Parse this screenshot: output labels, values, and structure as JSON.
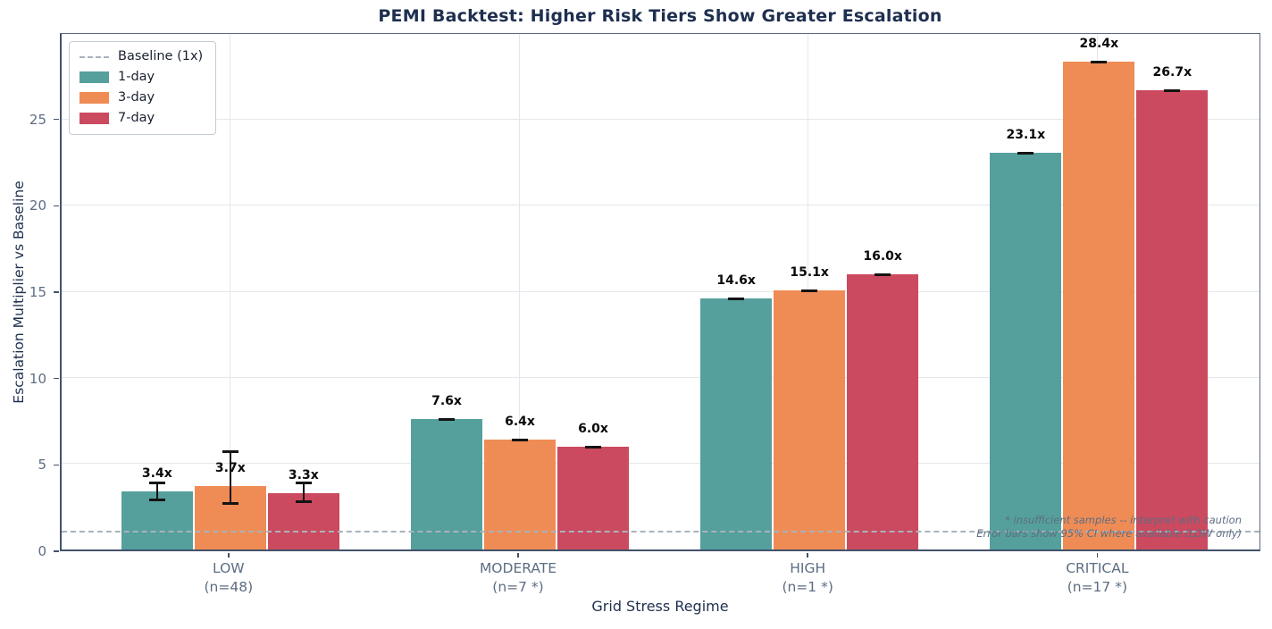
{
  "chart_data": {
    "type": "bar",
    "title": "PEMI Backtest: Higher Risk Tiers Show Greater Escalation",
    "xlabel": "Grid Stress Regime",
    "ylabel": "Escalation Multiplier vs Baseline",
    "ylim": [
      0,
      30
    ],
    "yticks": [
      0,
      5,
      10,
      15,
      20,
      25
    ],
    "grid": true,
    "legend_position": "upper left",
    "value_suffix": "x",
    "categories": [
      "LOW",
      "MODERATE",
      "HIGH",
      "CRITICAL"
    ],
    "category_sublabels": [
      "(n=48)",
      "(n=7 *)",
      "(n=1 *)",
      "(n=17 *)"
    ],
    "series": [
      {
        "name": "1-day",
        "color": "#55a09c",
        "values": [
          3.4,
          7.6,
          14.6,
          23.1
        ],
        "ci": [
          [
            2.9,
            3.9
          ],
          [
            7.6,
            7.6
          ],
          [
            14.6,
            14.6
          ],
          [
            23.1,
            23.1
          ]
        ]
      },
      {
        "name": "3-day",
        "color": "#ef8c55",
        "values": [
          3.7,
          6.4,
          15.1,
          28.4
        ],
        "ci": [
          [
            2.7,
            5.7
          ],
          [
            6.4,
            6.4
          ],
          [
            15.1,
            15.1
          ],
          [
            28.4,
            28.4
          ]
        ]
      },
      {
        "name": "7-day",
        "color": "#cb4a5f",
        "values": [
          3.3,
          6.0,
          16.0,
          26.7
        ],
        "ci": [
          [
            2.8,
            3.9
          ],
          [
            6.0,
            6.0
          ],
          [
            16.0,
            16.0
          ],
          [
            26.7,
            26.7
          ]
        ]
      }
    ],
    "baseline": {
      "value": 1,
      "label": "Baseline (1x)"
    },
    "annotations": [
      "* insufficient samples -- interpret with caution",
      "Error bars show 95% CI where available (LOW only)"
    ]
  }
}
